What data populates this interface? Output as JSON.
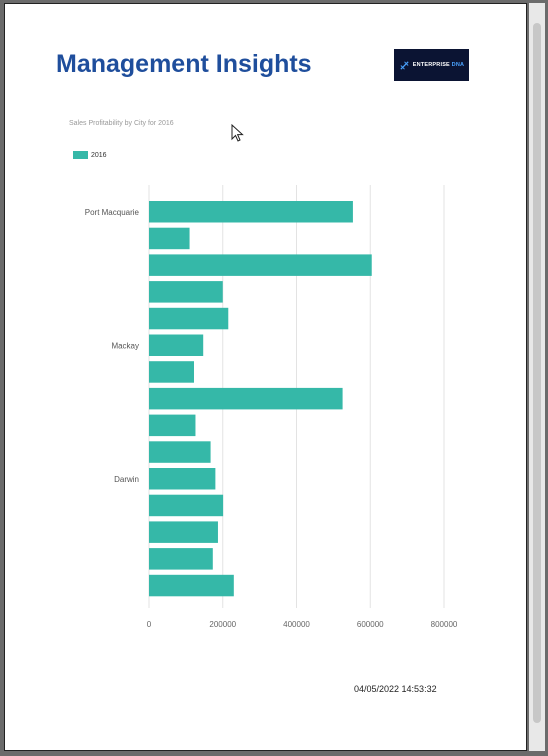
{
  "report": {
    "title": "Management Insights",
    "logo": {
      "brand": "ENTERPRISE",
      "suffix": "DNA",
      "colors": {
        "background": "#0b1433",
        "accent": "#4aa3ff"
      }
    },
    "timestamp": "04/05/2022 14:53:32"
  },
  "chart_data": {
    "type": "bar",
    "orientation": "horizontal",
    "title": "Sales Profitability by City for 2016",
    "legend": {
      "position": "top-left",
      "entries": [
        "2016"
      ]
    },
    "series_color": "#35b8a8",
    "grid": true,
    "xlim": [
      0,
      800000
    ],
    "x_ticks": [
      "0",
      "200000",
      "400000",
      "600000",
      "800000"
    ],
    "visible_category_labels": [
      "Port Macquarie",
      "Mackay",
      "Darwin"
    ],
    "category_label_rows": [
      0,
      5,
      10
    ],
    "series": [
      {
        "name": "2016",
        "values": [
          553000,
          110000,
          604000,
          200000,
          215000,
          147000,
          122000,
          525000,
          126000,
          167000,
          180000,
          201000,
          187000,
          173000,
          230000
        ]
      }
    ]
  }
}
